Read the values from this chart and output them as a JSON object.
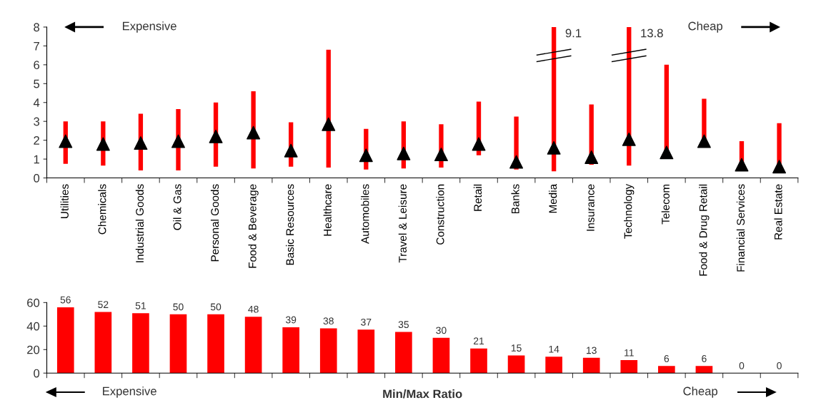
{
  "chart_data": [
    {
      "type": "bar",
      "categories": [
        "Utilities",
        "Chemicals",
        "Industrial Goods",
        "Oil & Gas",
        "Personal Goods",
        "Food & Beverage",
        "Basic Resources",
        "Healthcare",
        "Automobiles",
        "Travel & Leisure",
        "Construction",
        "Retail",
        "Banks",
        "Media",
        "Insurance",
        "Technology",
        "Telecom",
        "Food & Drug Retail",
        "Financial Services",
        "Real Estate"
      ],
      "series": [
        {
          "type": "bar",
          "color": "#ff0000",
          "base": [
            0.75,
            0.65,
            0.4,
            0.4,
            0.6,
            0.5,
            0.6,
            0.55,
            0.45,
            0.5,
            0.55,
            1.2,
            0.45,
            0.35,
            0.7,
            0.65,
            1.05,
            1.9,
            0.65,
            0.55
          ],
          "values": [
            2.25,
            2.35,
            3.0,
            3.25,
            3.4,
            4.1,
            2.35,
            6.25,
            2.15,
            2.5,
            2.3,
            2.85,
            2.8,
            8.75,
            3.2,
            13.15,
            4.95,
            2.3,
            1.3,
            2.35
          ]
        },
        {
          "type": "scatter",
          "color": "#000000",
          "marker": "triangle",
          "values": [
            1.95,
            1.8,
            1.85,
            1.95,
            2.2,
            2.4,
            1.45,
            2.85,
            1.2,
            1.3,
            1.25,
            1.8,
            0.85,
            1.6,
            1.1,
            2.05,
            1.35,
            1.95,
            0.7,
            0.6
          ]
        }
      ],
      "ylim": [
        0,
        8
      ],
      "yticks": [
        0,
        1,
        2,
        3,
        4,
        5,
        6,
        7,
        8
      ],
      "grid": false,
      "annotations": [
        "Expensive",
        "Cheap",
        "9.1",
        "13.8"
      ]
    },
    {
      "type": "bar",
      "categories": [
        null,
        null,
        null,
        null,
        null,
        null,
        null,
        null,
        null,
        null,
        null,
        null,
        null,
        null,
        null,
        null,
        null,
        null,
        null,
        null
      ],
      "values": [
        56,
        52,
        51,
        50,
        50,
        48,
        39,
        38,
        37,
        35,
        30,
        21,
        15,
        14,
        13,
        11,
        6,
        6,
        0,
        0
      ],
      "color": "#ff0000",
      "data_labels": true,
      "xlabel": "Min/Max Ratio",
      "ylim": [
        0,
        60
      ],
      "yticks": [
        0,
        20,
        40,
        60
      ],
      "grid": false,
      "annotations": [
        "Expensive",
        "Cheap"
      ]
    }
  ]
}
